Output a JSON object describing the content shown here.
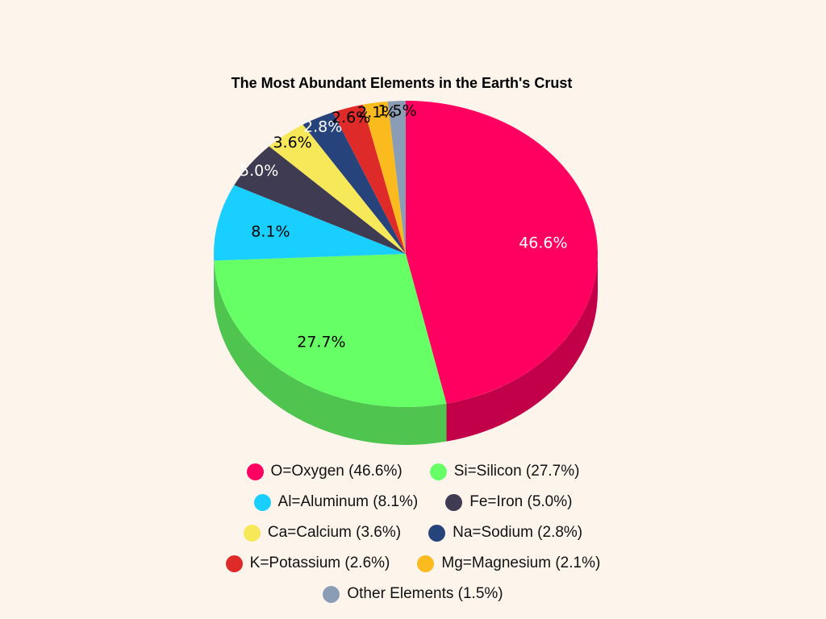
{
  "chart_data": {
    "type": "pie",
    "title": "The Most Abundant Elements in the Earth's Crust",
    "categories": [
      "O=Oxygen (46.6%)",
      "Si=Silicon (27.7%)",
      "Al=Aluminum (8.1%)",
      "Fe=Iron (5.0%)",
      "Ca=Calcium (3.6%)",
      "Na=Sodium (2.8%)",
      "K=Potassium (2.6%)",
      "Mg=Magnesium (2.1%)",
      "Other Elements (1.5%)"
    ],
    "values": [
      46.6,
      27.7,
      8.1,
      5.0,
      3.6,
      2.8,
      2.6,
      2.1,
      1.5
    ],
    "labels": [
      "46.6%",
      "27.7%",
      "8.1%",
      "5.0%",
      "3.6%",
      "2.8%",
      "2.6%",
      "2.1%",
      "1.5%"
    ],
    "colors": [
      "#ff0060",
      "#66ff66",
      "#19cfff",
      "#3f3b52",
      "#f7e85a",
      "#27437c",
      "#df2a2a",
      "#fbba1e",
      "#8a9db5"
    ],
    "side_colors": [
      "#c2004a",
      "#4fc44f",
      "#12a2c9",
      "#2e2b3d",
      "#c6ba44",
      "#1c315c",
      "#a81f1f",
      "#c8941a",
      "#6b7a8e"
    ],
    "label_colors": [
      "#ffffff",
      "#000000",
      "#000000",
      "#ffffff",
      "#000000",
      "#ffffff",
      "#000000",
      "#000000",
      "#000000"
    ],
    "legend_placement": "bottom",
    "style": "3d"
  }
}
